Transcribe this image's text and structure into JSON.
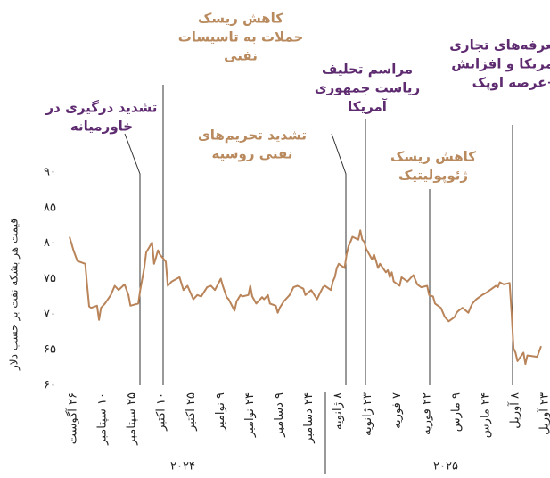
{
  "chart_data": {
    "type": "line",
    "y_label": "قیمت هر بشکه نفت بر حسب دلار",
    "color": "#b98459",
    "xlim": [
      "2024-08-26",
      "2025-04-23"
    ],
    "ylim": [
      60,
      90
    ],
    "yticks": [
      {
        "value": 60,
        "label": "۶۰"
      },
      {
        "value": 65,
        "label": "۶۵"
      },
      {
        "value": 70,
        "label": "۷۰"
      },
      {
        "value": 75,
        "label": "۷۵"
      },
      {
        "value": 80,
        "label": "۸۰"
      },
      {
        "value": 85,
        "label": "۸۵"
      },
      {
        "value": 90,
        "label": "۹۰"
      }
    ],
    "xticks": [
      {
        "value": "2024-08-26",
        "label": "۲۶ آگوست"
      },
      {
        "value": "2024-09-10",
        "label": "۱۰ سپتامبر"
      },
      {
        "value": "2024-09-25",
        "label": "۲۵ سپتامبر"
      },
      {
        "value": "2024-10-10",
        "label": "۱۰ اکتبر"
      },
      {
        "value": "2024-10-25",
        "label": "۲۵ اکتبر"
      },
      {
        "value": "2024-11-09",
        "label": "۹ نوامبر"
      },
      {
        "value": "2024-11-24",
        "label": "۲۴ نوامبر"
      },
      {
        "value": "2024-12-09",
        "label": "۹ دسامبر"
      },
      {
        "value": "2024-12-24",
        "label": "۲۴ دسامبر"
      },
      {
        "value": "2025-01-08",
        "label": "۸ ژانویه"
      },
      {
        "value": "2025-01-23",
        "label": "۲۳ ژانویه"
      },
      {
        "value": "2025-02-07",
        "label": "۷ فوریه"
      },
      {
        "value": "2025-02-22",
        "label": "۲۲ فوریه"
      },
      {
        "value": "2025-03-09",
        "label": "۹ مارس"
      },
      {
        "value": "2025-03-24",
        "label": "۲۴ مارس"
      },
      {
        "value": "2025-04-08",
        "label": "۸ آوریل"
      },
      {
        "value": "2025-04-23",
        "label": "۲۳ آوریل"
      }
    ],
    "year_labels": [
      "۲۰۲۴",
      "۲۰۲۵"
    ],
    "annotations": [
      {
        "lines": [
          "تشدید درگیری در",
          "خاورمیانه"
        ],
        "color": "#5e2b70"
      },
      {
        "lines": [
          "کاهش ریسک",
          "حملات به تاسیسات",
          "نفتی"
        ],
        "color": "#b98a5e"
      },
      {
        "lines": [
          "تشدید تحریم‌های",
          "نفتی روسیه"
        ],
        "color": "#b98a5e"
      },
      {
        "lines": [
          "مراسم تحلیف",
          "ریاست جمهوری",
          "آمریکا"
        ],
        "color": "#5e2b70"
      },
      {
        "lines": [
          "کاهش ریسک",
          "ژئوپولیتیک"
        ],
        "color": "#b98a5e"
      },
      {
        "lines": [
          "تعرفه‌های تجاری",
          "آمریکا و افزایش",
          "عرضه اوپک+"
        ],
        "color": "#5e2b70"
      }
    ],
    "x": [
      "2024-08-26",
      "2024-08-28",
      "2024-08-30",
      "2024-09-03",
      "2024-09-04",
      "2024-09-05",
      "2024-09-06",
      "2024-09-09",
      "2024-09-10",
      "2024-09-11",
      "2024-09-13",
      "2024-09-16",
      "2024-09-18",
      "2024-09-20",
      "2024-09-23",
      "2024-09-25",
      "2024-09-26",
      "2024-09-30",
      "2024-10-01",
      "2024-10-03",
      "2024-10-04",
      "2024-10-07",
      "2024-10-08",
      "2024-10-09",
      "2024-10-10",
      "2024-10-11",
      "2024-10-14",
      "2024-10-15",
      "2024-10-17",
      "2024-10-21",
      "2024-10-23",
      "2024-10-25",
      "2024-10-28",
      "2024-10-30",
      "2024-11-01",
      "2024-11-04",
      "2024-11-06",
      "2024-11-08",
      "2024-11-11",
      "2024-11-12",
      "2024-11-14",
      "2024-11-15",
      "2024-11-18",
      "2024-11-19",
      "2024-11-21",
      "2024-11-22",
      "2024-11-25",
      "2024-11-26",
      "2024-11-27",
      "2024-11-29",
      "2024-12-02",
      "2024-12-03",
      "2024-12-05",
      "2024-12-06",
      "2024-12-09",
      "2024-12-10",
      "2024-12-11",
      "2024-12-13",
      "2024-12-16",
      "2024-12-18",
      "2024-12-20",
      "2024-12-23",
      "2024-12-24",
      "2024-12-27",
      "2024-12-30",
      "2024-12-31",
      "2025-01-02",
      "2025-01-03",
      "2025-01-06",
      "2025-01-07",
      "2025-01-08",
      "2025-01-09",
      "2025-01-10",
      "2025-01-13",
      "2025-01-14",
      "2025-01-15",
      "2025-01-16",
      "2025-01-17",
      "2025-01-20",
      "2025-01-21",
      "2025-01-22",
      "2025-01-23",
      "2025-01-24",
      "2025-01-27",
      "2025-01-28",
      "2025-01-29",
      "2025-01-30",
      "2025-01-31",
      "2025-02-03",
      "2025-02-04",
      "2025-02-05",
      "2025-02-06",
      "2025-02-07",
      "2025-02-10",
      "2025-02-11",
      "2025-02-12",
      "2025-02-14",
      "2025-02-17",
      "2025-02-19",
      "2025-02-21",
      "2025-02-24",
      "2025-02-25",
      "2025-02-27",
      "2025-02-28",
      "2025-03-03",
      "2025-03-05",
      "2025-03-07",
      "2025-03-10",
      "2025-03-11",
      "2025-03-12",
      "2025-03-14",
      "2025-03-17",
      "2025-03-18",
      "2025-03-19",
      "2025-03-21",
      "2025-03-24",
      "2025-03-26",
      "2025-03-28",
      "2025-03-31",
      "2025-04-01",
      "2025-04-02",
      "2025-04-04",
      "2025-04-07",
      "2025-04-08",
      "2025-04-09",
      "2025-04-10",
      "2025-04-11",
      "2025-04-14",
      "2025-04-15",
      "2025-04-16",
      "2025-04-21",
      "2025-04-23"
    ],
    "values": [
      80.9,
      79,
      77.5,
      77.1,
      74,
      71.1,
      70.9,
      71.2,
      69.2,
      70.9,
      71.5,
      72.7,
      74,
      73.4,
      74.2,
      72.7,
      71.2,
      71.5,
      73.4,
      76.5,
      78.7,
      80.1,
      77.1,
      78,
      79,
      78.4,
      77.4,
      74,
      74.6,
      75.2,
      73.4,
      74,
      72.1,
      72.7,
      72.5,
      73.8,
      74,
      73.4,
      75,
      74,
      72.4,
      72.1,
      70.5,
      71.8,
      72.7,
      72.5,
      72.7,
      74,
      72.5,
      71.5,
      72.4,
      72.1,
      72.7,
      71.5,
      71.2,
      70.2,
      70.9,
      71.8,
      72.7,
      73.8,
      74,
      73.6,
      72.7,
      73.4,
      72.1,
      72.7,
      73.8,
      74,
      73.4,
      74.6,
      75.2,
      76.5,
      77.1,
      76.5,
      78.4,
      79.6,
      80.2,
      80.9,
      80.5,
      81.8,
      80.5,
      80.2,
      79.2,
      77.7,
      78.4,
      77.5,
      76.5,
      77.1,
      75.9,
      76.2,
      75.2,
      75.9,
      74.6,
      74,
      75.2,
      75,
      74.6,
      75.5,
      74.2,
      73.8,
      74,
      72.7,
      72.5,
      71.5,
      70.9,
      69.6,
      69,
      69.6,
      70.2,
      70.5,
      70.9,
      70.2,
      70.9,
      71.5,
      72.1,
      72.7,
      73,
      73.4,
      74,
      73.8,
      74.5,
      74.2,
      74.4,
      70.2,
      65.2,
      64.6,
      63.4,
      64.6,
      63,
      64.2,
      64,
      65.5
    ]
  }
}
